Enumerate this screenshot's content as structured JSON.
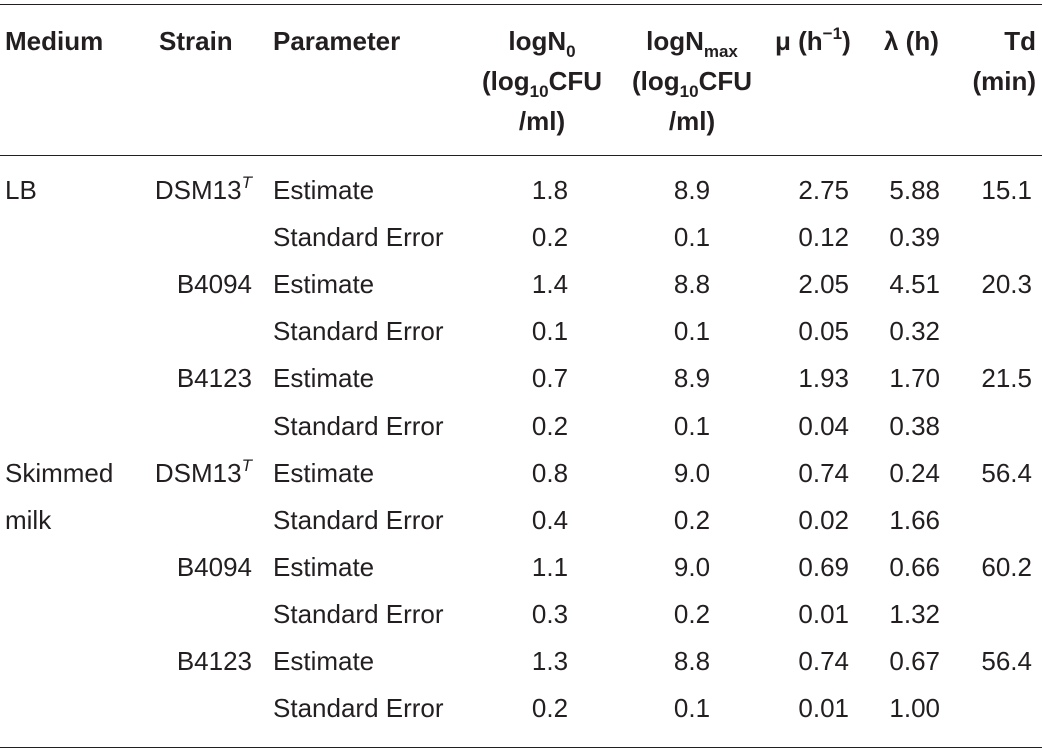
{
  "table": {
    "headers": {
      "medium": "Medium",
      "strain": "Strain",
      "parameter": "Parameter",
      "logn0": {
        "main": "logN",
        "sub": "0",
        "line2": "(log",
        "line2_sub": "10",
        "line2_rest": "CFU",
        "line3": "/ml)"
      },
      "lognmax": {
        "main": "logN",
        "sub": "max",
        "line2": "(log",
        "line2_sub": "10",
        "line2_rest": "CFU",
        "line3": "/ml)"
      },
      "mu": {
        "main": "μ (h",
        "sup": "−1",
        "rest": ")"
      },
      "lambda": "λ (h)",
      "td": {
        "line1": "Td",
        "line2": "(min)"
      }
    },
    "rows": [
      {
        "medium": "LB",
        "strain": "DSM13",
        "strain_sup": "T",
        "parameter": "Estimate",
        "logn0": "1.8",
        "lognmax": "8.9",
        "mu": "2.75",
        "lambda": "5.88",
        "td": "15.1"
      },
      {
        "medium": "",
        "strain": "",
        "strain_sup": "",
        "parameter": "Standard Error",
        "logn0": "0.2",
        "lognmax": "0.1",
        "mu": "0.12",
        "lambda": "0.39",
        "td": ""
      },
      {
        "medium": "",
        "strain": "B4094",
        "strain_sup": "",
        "parameter": "Estimate",
        "logn0": "1.4",
        "lognmax": "8.8",
        "mu": "2.05",
        "lambda": "4.51",
        "td": "20.3"
      },
      {
        "medium": "",
        "strain": "",
        "strain_sup": "",
        "parameter": "Standard Error",
        "logn0": "0.1",
        "lognmax": "0.1",
        "mu": "0.05",
        "lambda": "0.32",
        "td": ""
      },
      {
        "medium": "",
        "strain": "B4123",
        "strain_sup": "",
        "parameter": "Estimate",
        "logn0": "0.7",
        "lognmax": "8.9",
        "mu": "1.93",
        "lambda": "1.70",
        "td": "21.5"
      },
      {
        "medium": "",
        "strain": "",
        "strain_sup": "",
        "parameter": "Standard Error",
        "logn0": "0.2",
        "lognmax": "0.1",
        "mu": "0.04",
        "lambda": "0.38",
        "td": ""
      },
      {
        "medium": "Skimmed",
        "strain": "DSM13",
        "strain_sup": "T",
        "parameter": "Estimate",
        "logn0": "0.8",
        "lognmax": "9.0",
        "mu": "0.74",
        "lambda": "0.24",
        "td": "56.4"
      },
      {
        "medium": "milk",
        "strain": "",
        "strain_sup": "",
        "parameter": "Standard Error",
        "logn0": "0.4",
        "lognmax": "0.2",
        "mu": "0.02",
        "lambda": "1.66",
        "td": ""
      },
      {
        "medium": "",
        "strain": "B4094",
        "strain_sup": "",
        "parameter": "Estimate",
        "logn0": "1.1",
        "lognmax": "9.0",
        "mu": "0.69",
        "lambda": "0.66",
        "td": "60.2"
      },
      {
        "medium": "",
        "strain": "",
        "strain_sup": "",
        "parameter": "Standard Error",
        "logn0": "0.3",
        "lognmax": "0.2",
        "mu": "0.01",
        "lambda": "1.32",
        "td": ""
      },
      {
        "medium": "",
        "strain": "B4123",
        "strain_sup": "",
        "parameter": "Estimate",
        "logn0": "1.3",
        "lognmax": "8.8",
        "mu": "0.74",
        "lambda": "0.67",
        "td": "56.4"
      },
      {
        "medium": "",
        "strain": "",
        "strain_sup": "",
        "parameter": "Standard Error",
        "logn0": "0.2",
        "lognmax": "0.1",
        "mu": "0.01",
        "lambda": "1.00",
        "td": ""
      }
    ]
  }
}
